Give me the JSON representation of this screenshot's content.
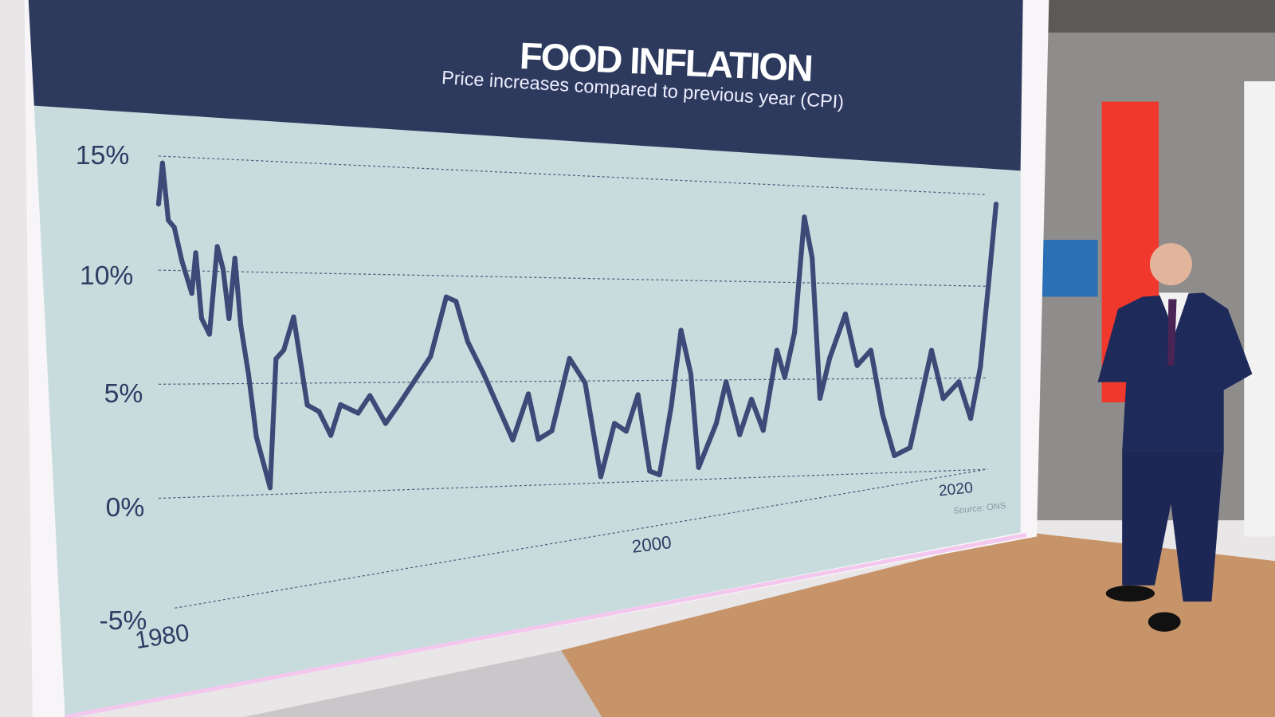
{
  "chart_data": {
    "type": "line",
    "title": "FOOD INFLATION",
    "subtitle": "Price increases compared to previous year (CPI)",
    "source": "Source: ONS",
    "xlabel": "",
    "ylabel": "",
    "ylim": [
      -5,
      15
    ],
    "yticks": [
      15,
      10,
      5,
      0,
      -5
    ],
    "ytick_labels": [
      "15%",
      "10%",
      "5%",
      "0%",
      "-5%"
    ],
    "xtick_labels": [
      "1980",
      "2000",
      "2020"
    ],
    "grid": true,
    "color": "#3d4a78",
    "series": [
      {
        "name": "Food inflation",
        "x": [
          1980.0,
          1980.2,
          1980.5,
          1980.8,
          1981.2,
          1981.7,
          1981.9,
          1982.2,
          1982.6,
          1983.0,
          1983.3,
          1983.6,
          1983.9,
          1984.2,
          1984.6,
          1985.0,
          1985.7,
          1986.0,
          1986.4,
          1986.9,
          1987.6,
          1988.2,
          1988.8,
          1989.3,
          1990.2,
          1990.8,
          1991.6,
          1992.3,
          1993.1,
          1993.9,
          1994.7,
          1995.2,
          1995.8,
          1996.6,
          1997.4,
          1998.1,
          1998.9,
          1999.4,
          2000.1,
          2001.0,
          2001.8,
          2002.6,
          2003.3,
          2003.9,
          2004.5,
          2005.1,
          2005.6,
          2006.2,
          2006.7,
          2007.2,
          2007.6,
          2008.5,
          2009.0,
          2009.7,
          2010.3,
          2010.9,
          2011.6,
          2012.0,
          2012.5,
          2013.0,
          2013.4,
          2013.8,
          2014.3,
          2015.1,
          2015.7,
          2016.4,
          2017.0,
          2017.6,
          2018.4,
          2019.5,
          2020.1,
          2020.9,
          2021.5,
          2022.0,
          2022.4,
          2022.8
        ],
        "values": [
          12.9,
          14.7,
          12.2,
          11.9,
          10.4,
          9.0,
          10.8,
          7.9,
          7.2,
          11.1,
          10.1,
          7.9,
          10.6,
          7.6,
          5.4,
          2.6,
          0.3,
          6.1,
          6.5,
          8.0,
          4.0,
          3.7,
          2.6,
          4.0,
          3.6,
          4.4,
          3.1,
          4.0,
          5.1,
          6.2,
          9.0,
          8.8,
          6.9,
          5.4,
          3.7,
          2.2,
          4.4,
          2.2,
          2.6,
          6.1,
          4.9,
          0.3,
          2.9,
          2.5,
          4.3,
          0.5,
          0.3,
          3.7,
          7.5,
          5.3,
          0.6,
          2.8,
          4.9,
          2.2,
          4.0,
          2.4,
          6.5,
          5.1,
          7.4,
          13.4,
          11.3,
          4.0,
          6.1,
          8.4,
          5.7,
          6.5,
          3.1,
          0.9,
          1.3,
          6.5,
          3.9,
          4.8,
          2.8,
          5.6,
          10.0,
          14.5
        ]
      }
    ]
  }
}
